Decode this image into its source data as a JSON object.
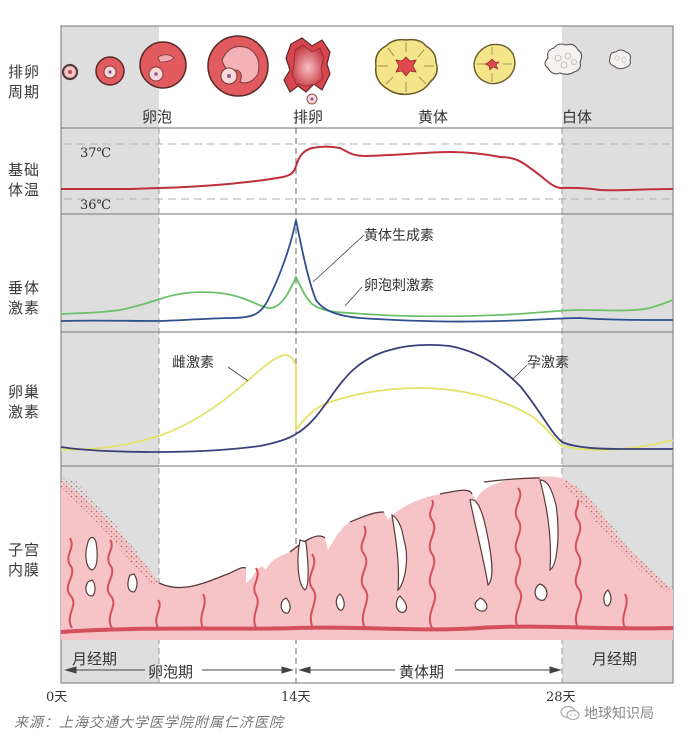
{
  "rows": {
    "ovarian_cycle": "排卵周期",
    "basal_temp": "基础体温",
    "pituitary_hormones": "垂体激素",
    "ovarian_hormones": "卵巢激素",
    "endometrium": "子宫内膜"
  },
  "ovary_stage_labels": {
    "follicle": "卵泡",
    "ovulation": "排卵",
    "corpus_luteum": "黄体",
    "corpus_albicans": "白体"
  },
  "temperature": {
    "high_label": "37℃",
    "low_label": "36℃"
  },
  "curve_labels": {
    "lh": "黄体生成素",
    "fsh": "卵泡刺激素",
    "estrogen": "雌激素",
    "progesterone": "孕激素"
  },
  "phases": {
    "menstrual_start": "月经期",
    "follicular": "卵泡期",
    "luteal": "黄体期",
    "menstrual_end": "月经期"
  },
  "days": {
    "d0": "0天",
    "d14": "14天",
    "d28": "28天"
  },
  "source": "来源：上海交通大学医学院附属仁济医院",
  "watermark": "地球知识局",
  "colors": {
    "menstrual_band": "#dedede",
    "temperature": "#c0303a",
    "lh": "#2f4f8f",
    "fsh": "#6cc06a",
    "estrogen": "#e2e36a",
    "progesterone": "#3d3f7a",
    "endometrium_fill": "#f6c4c6",
    "vessel": "#d4505a",
    "follicle_red": "#e05a5e",
    "luteum_yellow": "#f5e58a"
  },
  "chart_data": {
    "type": "line",
    "title": "",
    "x": [
      0,
      2,
      4,
      6,
      8,
      10,
      12,
      13,
      14,
      15,
      16,
      18,
      20,
      22,
      24,
      26,
      28,
      30,
      32
    ],
    "xlabel": "天",
    "xticks": [
      "0天",
      "14天",
      "28天"
    ],
    "series": [
      {
        "name": "基础体温 (℃)",
        "values": [
          36.2,
          36.2,
          36.2,
          36.2,
          36.25,
          36.3,
          36.35,
          36.4,
          36.5,
          36.85,
          36.9,
          36.8,
          36.85,
          36.85,
          36.75,
          36.4,
          36.2,
          36.2,
          36.2
        ]
      },
      {
        "name": "黄体生成素",
        "values": [
          5,
          5,
          5,
          5,
          6,
          7,
          9,
          30,
          100,
          30,
          14,
          8,
          5,
          4,
          4,
          5,
          5,
          5,
          5
        ]
      },
      {
        "name": "卵泡刺激素",
        "values": [
          10,
          10,
          15,
          25,
          28,
          22,
          18,
          25,
          48,
          25,
          18,
          14,
          12,
          12,
          12,
          14,
          14,
          14,
          18
        ]
      },
      {
        "name": "雌激素",
        "values": [
          5,
          8,
          12,
          20,
          40,
          60,
          80,
          95,
          30,
          40,
          50,
          55,
          55,
          50,
          40,
          15,
          8,
          8,
          12
        ]
      },
      {
        "name": "孕激素",
        "values": [
          8,
          5,
          4,
          4,
          4,
          5,
          8,
          12,
          20,
          45,
          75,
          95,
          98,
          90,
          60,
          15,
          5,
          5,
          5
        ]
      }
    ],
    "annotations": [
      "37℃",
      "36℃",
      "卵泡",
      "排卵",
      "黄体",
      "白体",
      "月经期",
      "卵泡期",
      "黄体期"
    ],
    "grid": false,
    "legend": "inline labels"
  }
}
